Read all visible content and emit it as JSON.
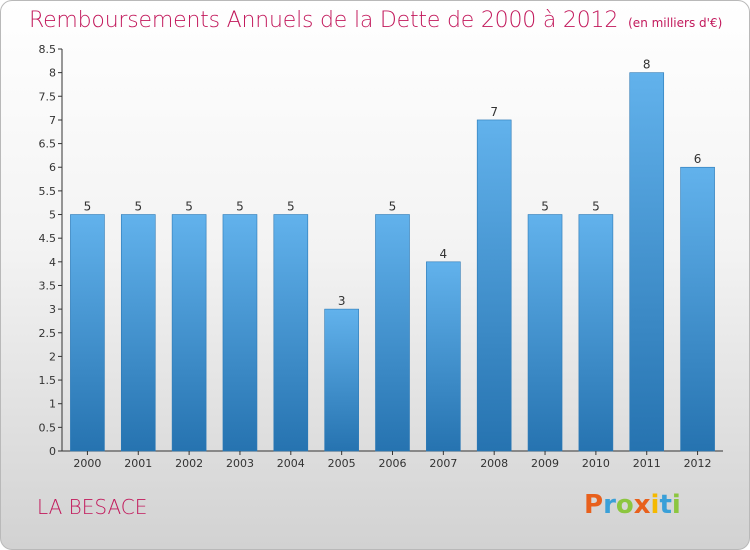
{
  "title": "Remboursements Annuels de la Dette de 2000 à 2012",
  "unit_note": "(en milliers d'€)",
  "town": "LA BESACE",
  "brand": "Proxiti",
  "colors": {
    "title": "#c2185b",
    "bar_light": "#5dade8",
    "bar_dark": "#2a78b5"
  },
  "chart_data": {
    "type": "bar",
    "categories": [
      "2000",
      "2001",
      "2002",
      "2003",
      "2004",
      "2005",
      "2006",
      "2007",
      "2008",
      "2009",
      "2010",
      "2011",
      "2012"
    ],
    "values": [
      5,
      5,
      5,
      5,
      5,
      3,
      5,
      4,
      7,
      5,
      5,
      8,
      6
    ],
    "data_labels": [
      "5",
      "5",
      "5",
      "5",
      "5",
      "3",
      "5",
      "4",
      "7",
      "5",
      "5",
      "8",
      "6"
    ],
    "title": "Remboursements Annuels de la Dette de 2000 à 2012",
    "subtitle": "(en milliers d'€)",
    "xlabel": "",
    "ylabel": "",
    "ylim": [
      0,
      8.5
    ],
    "yticks": [
      "0",
      "0.5",
      "1",
      "1.5",
      "2",
      "2.5",
      "3",
      "3.5",
      "4",
      "4.5",
      "5",
      "5.5",
      "6",
      "6.5",
      "7",
      "7.5",
      "8",
      "8.5"
    ],
    "ytick_values": [
      0,
      0.5,
      1,
      1.5,
      2,
      2.5,
      3,
      3.5,
      4,
      4.5,
      5,
      5.5,
      6,
      6.5,
      7,
      7.5,
      8,
      8.5
    ],
    "grid": false,
    "legend": "none"
  }
}
